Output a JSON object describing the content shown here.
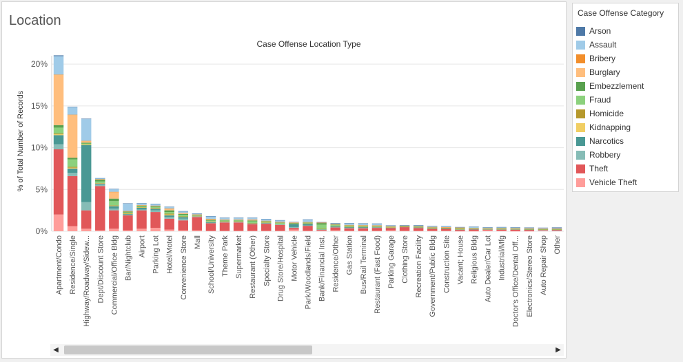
{
  "sheet_title": "Location",
  "legend": {
    "title": "Case Offense Category",
    "items": [
      {
        "label": "Arson",
        "color": "#4e79a7"
      },
      {
        "label": "Assault",
        "color": "#a0cbe8"
      },
      {
        "label": "Bribery",
        "color": "#f28e2b"
      },
      {
        "label": "Burglary",
        "color": "#ffbe7d"
      },
      {
        "label": "Embezzlement",
        "color": "#59a14f"
      },
      {
        "label": "Fraud",
        "color": "#8cd17d"
      },
      {
        "label": "Homicide",
        "color": "#b6992d"
      },
      {
        "label": "Kidnapping",
        "color": "#f1ce63"
      },
      {
        "label": "Narcotics",
        "color": "#499894"
      },
      {
        "label": "Robbery",
        "color": "#86bcb6"
      },
      {
        "label": "Theft",
        "color": "#e15759"
      },
      {
        "label": "Vehicle Theft",
        "color": "#ff9d9a"
      }
    ]
  },
  "scrollbar": {
    "left_arrow": "◀",
    "right_arrow": "▶"
  },
  "chart_data": {
    "type": "bar",
    "stacked": true,
    "title": "Case Offense Location Type",
    "ylabel": "% of Total Number of Records",
    "xlabel": "",
    "ylim": [
      0,
      21
    ],
    "yticks": [
      0,
      5,
      10,
      15,
      20
    ],
    "ytick_labels": [
      "0%",
      "5%",
      "10%",
      "15%",
      "20%"
    ],
    "grid": true,
    "legend_position": "right",
    "categories": [
      "Apartment/Condo",
      "Residence/Single",
      "Highway/Roadway/Sidew...",
      "Dept/Discount Store",
      "Commercial/Office Bldg",
      "Bar/Nightclub",
      "Airport",
      "Parking Lot",
      "Hotel/Motel",
      "Convenience Store",
      "Mall",
      "School/University",
      "Theme Park",
      "Supermarket",
      "Restaurant (Other)",
      "Specialty Store",
      "Drug Store/Hospital",
      "Motor Vehicle",
      "Park/Woodlands/Field",
      "Bank/Financial Inst.",
      "Residence/Other",
      "Gas Station",
      "Bus/Rail Terminal",
      "Restaurant (Fast Food)",
      "Parking Garage",
      "Clothing Store",
      "Recreation Facility",
      "Government/Public Bldg",
      "Construction Site",
      "Vacant; House",
      "Religious Bldg",
      "Auto Dealer/Car Lot",
      "Industrial/Mfg",
      "Doctor's Office/Dental Off...",
      "Electronics/Stereo Store",
      "Auto Repair Shop",
      "Other"
    ],
    "series": [
      {
        "name": "Vehicle Theft",
        "values": [
          2.0,
          0.6,
          0.3,
          0.1,
          0.3,
          0.1,
          0.3,
          0.4,
          0.2,
          0.1,
          0.1,
          0.05,
          0.05,
          0.05,
          0.05,
          0.05,
          0.05,
          0.2,
          0.05,
          0.05,
          0.1,
          0.05,
          0.05,
          0.05,
          0.1,
          0.05,
          0.05,
          0.05,
          0.05,
          0.02,
          0.02,
          0.1,
          0.05,
          0.02,
          0.02,
          0.1,
          0.05
        ]
      },
      {
        "name": "Theft",
        "values": [
          7.8,
          6.0,
          2.2,
          5.3,
          2.2,
          1.8,
          2.2,
          1.9,
          1.3,
          1.2,
          1.6,
          0.9,
          1.0,
          1.0,
          0.8,
          0.85,
          0.7,
          0.2,
          0.6,
          0.1,
          0.35,
          0.3,
          0.3,
          0.35,
          0.3,
          0.45,
          0.35,
          0.25,
          0.25,
          0.15,
          0.2,
          0.1,
          0.15,
          0.18,
          0.15,
          0.05,
          0.1
        ]
      },
      {
        "name": "Robbery",
        "values": [
          0.6,
          0.4,
          1.0,
          0.2,
          0.2,
          0.05,
          0.1,
          0.2,
          0.2,
          0.2,
          0.05,
          0.05,
          0.05,
          0.05,
          0.05,
          0.05,
          0.05,
          0.1,
          0.05,
          0.05,
          0.05,
          0.05,
          0.05,
          0.05,
          0.02,
          0.02,
          0.02,
          0.02,
          0.02,
          0.02,
          0.02,
          0.02,
          0.02,
          0.02,
          0.02,
          0.02,
          0.02
        ]
      },
      {
        "name": "Narcotics",
        "values": [
          1.1,
          0.5,
          6.8,
          0.1,
          0.3,
          0.1,
          0.2,
          0.2,
          0.2,
          0.2,
          0.05,
          0.1,
          0.05,
          0.05,
          0.05,
          0.05,
          0.05,
          0.4,
          0.2,
          0.05,
          0.1,
          0.1,
          0.1,
          0.05,
          0.02,
          0.02,
          0.05,
          0.02,
          0.02,
          0.02,
          0.02,
          0.02,
          0.02,
          0.02,
          0.02,
          0.02,
          0.02
        ]
      },
      {
        "name": "Kidnapping",
        "values": [
          0.1,
          0.1,
          0.05,
          0.05,
          0.05,
          0.05,
          0.05,
          0.05,
          0.1,
          0.05,
          0.02,
          0.05,
          0.02,
          0.02,
          0.02,
          0.02,
          0.02,
          0.02,
          0.02,
          0.02,
          0.02,
          0.02,
          0.02,
          0.02,
          0.02,
          0.02,
          0.02,
          0.02,
          0.02,
          0.1,
          0.02,
          0.02,
          0.02,
          0.02,
          0.02,
          0.02,
          0.02
        ]
      },
      {
        "name": "Homicide",
        "values": [
          0.1,
          0.1,
          0.05,
          0.02,
          0.05,
          0.05,
          0.02,
          0.05,
          0.1,
          0.02,
          0.02,
          0.02,
          0.02,
          0.02,
          0.02,
          0.02,
          0.02,
          0.02,
          0.02,
          0.02,
          0.02,
          0.02,
          0.02,
          0.02,
          0.02,
          0.02,
          0.02,
          0.02,
          0.02,
          0.02,
          0.02,
          0.02,
          0.02,
          0.02,
          0.02,
          0.02,
          0.02
        ]
      },
      {
        "name": "Fraud",
        "values": [
          0.7,
          0.9,
          0.1,
          0.2,
          0.5,
          0.1,
          0.1,
          0.1,
          0.2,
          0.2,
          0.05,
          0.1,
          0.1,
          0.1,
          0.2,
          0.1,
          0.1,
          0.05,
          0.1,
          0.5,
          0.1,
          0.1,
          0.1,
          0.05,
          0.05,
          0.02,
          0.02,
          0.05,
          0.02,
          0.02,
          0.02,
          0.02,
          0.02,
          0.02,
          0.02,
          0.02,
          0.02
        ]
      },
      {
        "name": "Embezzlement",
        "values": [
          0.3,
          0.2,
          0.1,
          0.2,
          0.3,
          0.1,
          0.1,
          0.1,
          0.2,
          0.1,
          0.05,
          0.1,
          0.05,
          0.05,
          0.1,
          0.05,
          0.05,
          0.02,
          0.02,
          0.2,
          0.05,
          0.05,
          0.05,
          0.05,
          0.02,
          0.02,
          0.05,
          0.05,
          0.02,
          0.02,
          0.02,
          0.02,
          0.02,
          0.02,
          0.02,
          0.02,
          0.02
        ]
      },
      {
        "name": "Burglary",
        "values": [
          6.0,
          5.1,
          0.2,
          0.05,
          0.8,
          0.05,
          0.05,
          0.05,
          0.2,
          0.1,
          0.05,
          0.1,
          0.05,
          0.05,
          0.1,
          0.05,
          0.05,
          0.02,
          0.02,
          0.02,
          0.05,
          0.05,
          0.02,
          0.05,
          0.02,
          0.02,
          0.02,
          0.02,
          0.05,
          0.05,
          0.02,
          0.02,
          0.05,
          0.02,
          0.02,
          0.02,
          0.02
        ]
      },
      {
        "name": "Bribery",
        "values": [
          0.05,
          0.05,
          0.02,
          0.02,
          0.02,
          0.02,
          0.02,
          0.02,
          0.02,
          0.02,
          0.02,
          0.02,
          0.02,
          0.02,
          0.02,
          0.02,
          0.02,
          0.02,
          0.02,
          0.02,
          0.02,
          0.02,
          0.02,
          0.02,
          0.02,
          0.02,
          0.02,
          0.02,
          0.02,
          0.02,
          0.02,
          0.02,
          0.02,
          0.02,
          0.02,
          0.02,
          0.02
        ]
      },
      {
        "name": "Assault",
        "values": [
          2.2,
          0.9,
          2.6,
          0.1,
          0.3,
          0.9,
          0.2,
          0.2,
          0.2,
          0.2,
          0.1,
          0.3,
          0.2,
          0.2,
          0.2,
          0.2,
          0.2,
          0.05,
          0.3,
          0.05,
          0.1,
          0.2,
          0.2,
          0.2,
          0.1,
          0.05,
          0.1,
          0.1,
          0.1,
          0.05,
          0.15,
          0.1,
          0.1,
          0.1,
          0.1,
          0.1,
          0.05
        ]
      },
      {
        "name": "Arson",
        "values": [
          0.1,
          0.05,
          0.05,
          0.02,
          0.05,
          0.02,
          0.02,
          0.02,
          0.02,
          0.02,
          0.02,
          0.02,
          0.02,
          0.02,
          0.02,
          0.02,
          0.02,
          0.02,
          0.02,
          0.02,
          0.02,
          0.02,
          0.02,
          0.02,
          0.02,
          0.02,
          0.02,
          0.02,
          0.02,
          0.02,
          0.02,
          0.02,
          0.02,
          0.02,
          0.02,
          0.02,
          0.1
        ]
      }
    ]
  }
}
